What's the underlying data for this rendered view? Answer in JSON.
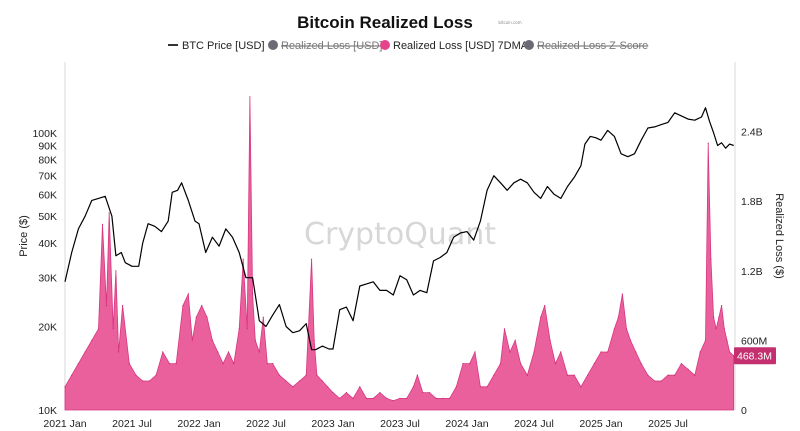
{
  "chart_data": {
    "type": "line",
    "title": "Bitcoin Realized Loss",
    "subtitle": "bitcoin.com",
    "watermark": "CryptoQuant",
    "legend": [
      {
        "label": "BTC Price [USD]",
        "kind": "line",
        "color": "#000000",
        "active": true
      },
      {
        "label": "Realized Loss [USD]",
        "kind": "dot",
        "color": "#6b6b76",
        "active": false
      },
      {
        "label": "Realized Loss [USD] 7DMA",
        "kind": "dot",
        "color": "#e5448c",
        "active": true
      },
      {
        "label": "Realized Loss Z-Score",
        "kind": "dot",
        "color": "#6b6b76",
        "active": false
      }
    ],
    "x_axis": {
      "labels": [
        "2021 Jan",
        "2021 Jul",
        "2022 Jan",
        "2022 Jul",
        "2023 Jan",
        "2023 Jul",
        "2024 Jan",
        "2024 Jul",
        "2025 Jan",
        "2025 Jul"
      ],
      "start": 2021.0,
      "end": 2026.0
    },
    "y_left": {
      "label": "Price ($)",
      "scale": "log",
      "min": 10000,
      "max": 180000,
      "ticks": [
        {
          "v": 10000,
          "t": "10K"
        },
        {
          "v": 20000,
          "t": "20K"
        },
        {
          "v": 30000,
          "t": "30K"
        },
        {
          "v": 40000,
          "t": "40K"
        },
        {
          "v": 50000,
          "t": "50K"
        },
        {
          "v": 60000,
          "t": "60K"
        },
        {
          "v": 70000,
          "t": "70K"
        },
        {
          "v": 80000,
          "t": "80K"
        },
        {
          "v": 90000,
          "t": "90K"
        },
        {
          "v": 100000,
          "t": "100K"
        }
      ]
    },
    "y_right": {
      "label": "Realized Loss ($)",
      "min": 0,
      "max": 3000000000,
      "ticks": [
        {
          "v": 0,
          "t": "0"
        },
        {
          "v": 600000000,
          "t": "600M"
        },
        {
          "v": 1200000000,
          "t": "1.2B"
        },
        {
          "v": 1800000000,
          "t": "1.8B"
        },
        {
          "v": 2400000000,
          "t": "2.4B"
        }
      ],
      "current_value_label": "468.3M",
      "current_value": 468300000
    },
    "series": [
      {
        "name": "BTC Price [USD]",
        "color": "#000000",
        "x": [
          2021.0,
          2021.05,
          2021.1,
          2021.15,
          2021.2,
          2021.25,
          2021.3,
          2021.35,
          2021.38,
          2021.42,
          2021.45,
          2021.5,
          2021.55,
          2021.58,
          2021.62,
          2021.67,
          2021.72,
          2021.77,
          2021.8,
          2021.84,
          2021.87,
          2021.92,
          2021.97,
          2022.0,
          2022.05,
          2022.1,
          2022.15,
          2022.2,
          2022.25,
          2022.3,
          2022.35,
          2022.4,
          2022.45,
          2022.5,
          2022.55,
          2022.6,
          2022.65,
          2022.7,
          2022.75,
          2022.8,
          2022.84,
          2022.87,
          2022.92,
          2022.97,
          2023.0,
          2023.05,
          2023.1,
          2023.15,
          2023.2,
          2023.25,
          2023.3,
          2023.35,
          2023.4,
          2023.45,
          2023.5,
          2023.55,
          2023.6,
          2023.65,
          2023.7,
          2023.75,
          2023.8,
          2023.85,
          2023.9,
          2023.95,
          2024.0,
          2024.05,
          2024.1,
          2024.15,
          2024.2,
          2024.25,
          2024.3,
          2024.35,
          2024.4,
          2024.45,
          2024.5,
          2024.55,
          2024.6,
          2024.65,
          2024.7,
          2024.75,
          2024.8,
          2024.85,
          2024.88,
          2024.92,
          2024.96,
          2025.0,
          2025.05,
          2025.1,
          2025.15,
          2025.2,
          2025.25,
          2025.3,
          2025.35,
          2025.4,
          2025.45,
          2025.5,
          2025.55,
          2025.6,
          2025.65,
          2025.7,
          2025.75,
          2025.78,
          2025.81,
          2025.84,
          2025.87,
          2025.9,
          2025.93,
          2025.96,
          2025.99
        ],
        "values": [
          29000,
          37000,
          45000,
          50000,
          57000,
          58000,
          59000,
          50000,
          36000,
          37000,
          34000,
          33000,
          33000,
          40000,
          47000,
          46000,
          44000,
          48000,
          61000,
          62000,
          66000,
          57000,
          48000,
          47000,
          37000,
          42000,
          39000,
          45000,
          42000,
          37000,
          30000,
          30000,
          21000,
          20000,
          22000,
          24000,
          20000,
          19000,
          19300,
          20500,
          16500,
          16500,
          17000,
          16600,
          16600,
          23000,
          23500,
          21000,
          28000,
          28500,
          29000,
          27000,
          27000,
          26000,
          30500,
          29500,
          26000,
          27000,
          26500,
          34500,
          35500,
          37000,
          42000,
          43500,
          44000,
          41000,
          48000,
          62000,
          70000,
          66000,
          62000,
          66000,
          68000,
          66000,
          61000,
          58000,
          64000,
          60000,
          58000,
          64000,
          69000,
          76000,
          91000,
          97000,
          96000,
          94000,
          102000,
          97000,
          84000,
          82000,
          84000,
          94000,
          104000,
          105000,
          107000,
          109000,
          118000,
          115000,
          112000,
          111000,
          114000,
          123000,
          110000,
          100000,
          90000,
          92000,
          88000,
          91000,
          90000
        ]
      },
      {
        "name": "Realized Loss [USD] 7DMA",
        "color": "#e5448c",
        "x": [
          2021.0,
          2021.05,
          2021.1,
          2021.15,
          2021.2,
          2021.25,
          2021.28,
          2021.31,
          2021.33,
          2021.36,
          2021.38,
          2021.4,
          2021.43,
          2021.48,
          2021.53,
          2021.58,
          2021.63,
          2021.68,
          2021.73,
          2021.78,
          2021.83,
          2021.88,
          2021.92,
          2021.95,
          2021.98,
          2022.02,
          2022.06,
          2022.1,
          2022.14,
          2022.18,
          2022.22,
          2022.26,
          2022.3,
          2022.33,
          2022.36,
          2022.38,
          2022.4,
          2022.42,
          2022.45,
          2022.48,
          2022.51,
          2022.55,
          2022.6,
          2022.65,
          2022.7,
          2022.75,
          2022.8,
          2022.84,
          2022.86,
          2022.88,
          2022.92,
          2022.96,
          2023.0,
          2023.05,
          2023.1,
          2023.15,
          2023.2,
          2023.25,
          2023.3,
          2023.35,
          2023.4,
          2023.45,
          2023.5,
          2023.55,
          2023.6,
          2023.63,
          2023.67,
          2023.72,
          2023.77,
          2023.82,
          2023.87,
          2023.92,
          2023.97,
          2024.02,
          2024.06,
          2024.1,
          2024.15,
          2024.2,
          2024.25,
          2024.28,
          2024.32,
          2024.36,
          2024.4,
          2024.45,
          2024.5,
          2024.55,
          2024.58,
          2024.62,
          2024.66,
          2024.7,
          2024.75,
          2024.8,
          2024.85,
          2024.9,
          2024.95,
          2025.0,
          2025.05,
          2025.1,
          2025.13,
          2025.16,
          2025.19,
          2025.22,
          2025.26,
          2025.3,
          2025.35,
          2025.4,
          2025.45,
          2025.5,
          2025.55,
          2025.6,
          2025.65,
          2025.7,
          2025.74,
          2025.78,
          2025.8,
          2025.82,
          2025.84,
          2025.86,
          2025.88,
          2025.9,
          2025.92,
          2025.94,
          2025.96,
          2025.99
        ],
        "values": [
          200000000,
          300000000,
          400000000,
          500000000,
          600000000,
          700000000,
          1600000000,
          900000000,
          1700000000,
          700000000,
          1200000000,
          500000000,
          900000000,
          400000000,
          300000000,
          250000000,
          250000000,
          300000000,
          500000000,
          400000000,
          400000000,
          900000000,
          1000000000,
          600000000,
          800000000,
          900000000,
          800000000,
          600000000,
          500000000,
          400000000,
          500000000,
          400000000,
          700000000,
          1300000000,
          700000000,
          2700000000,
          1000000000,
          600000000,
          500000000,
          800000000,
          400000000,
          400000000,
          300000000,
          250000000,
          200000000,
          250000000,
          300000000,
          1300000000,
          600000000,
          300000000,
          250000000,
          200000000,
          150000000,
          100000000,
          150000000,
          100000000,
          200000000,
          100000000,
          100000000,
          150000000,
          100000000,
          80000000,
          100000000,
          100000000,
          200000000,
          300000000,
          150000000,
          150000000,
          100000000,
          100000000,
          100000000,
          200000000,
          400000000,
          400000000,
          500000000,
          200000000,
          200000000,
          300000000,
          400000000,
          700000000,
          500000000,
          600000000,
          400000000,
          300000000,
          500000000,
          800000000,
          900000000,
          600000000,
          400000000,
          500000000,
          300000000,
          300000000,
          200000000,
          300000000,
          400000000,
          500000000,
          500000000,
          700000000,
          800000000,
          1000000000,
          700000000,
          600000000,
          500000000,
          400000000,
          300000000,
          250000000,
          250000000,
          300000000,
          300000000,
          400000000,
          350000000,
          300000000,
          500000000,
          600000000,
          2300000000,
          1300000000,
          800000000,
          700000000,
          800000000,
          900000000,
          700000000,
          600000000,
          500000000,
          468300000
        ]
      }
    ]
  }
}
